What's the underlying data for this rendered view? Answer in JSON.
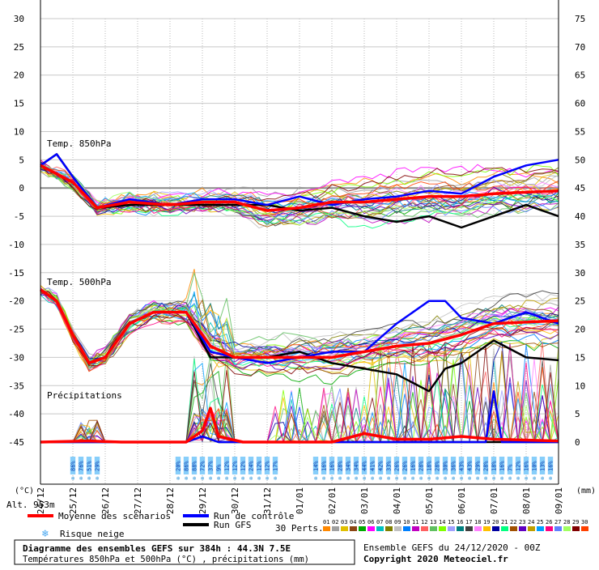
{
  "chart_data": {
    "type": "line",
    "title": "Diagramme des ensembles GEFS sur 384h : 44.3N 7.5E",
    "subtitle": "Températures 850hPa et 500hPa (°C) , précipitations (mm)",
    "left_axis": {
      "min": -45,
      "max": 30,
      "step": 5,
      "label": "(°C)"
    },
    "right_axis": {
      "min": 0,
      "max": 75,
      "step": 5,
      "label": "(mm)"
    },
    "x_labels": [
      "25/12",
      "26/12",
      "27/12",
      "28/12",
      "29/12",
      "30/12",
      "31/12",
      "01/01",
      "02/01",
      "03/01",
      "04/01",
      "05/01",
      "06/01",
      "07/01",
      "08/01",
      "09/01"
    ],
    "x_start_label": "24/12",
    "hours_total": 384,
    "altitude": "Alt. 953m",
    "sections": {
      "t850": "Temp. 850hPa",
      "t500": "Temp. 500hPa",
      "precip": "Précipitations"
    },
    "series": [
      {
        "name": "Moyenne des scénarios",
        "color": "#ff0000",
        "t850": [
          [
            0,
            4
          ],
          [
            24,
            1
          ],
          [
            42,
            -3.5
          ],
          [
            66,
            -2.5
          ],
          [
            96,
            -3
          ],
          [
            120,
            -2.5
          ],
          [
            144,
            -2.5
          ],
          [
            168,
            -4
          ],
          [
            192,
            -3.5
          ],
          [
            216,
            -2.5
          ],
          [
            240,
            -2.5
          ],
          [
            264,
            -2
          ],
          [
            288,
            -1.5
          ],
          [
            312,
            -1.5
          ],
          [
            336,
            -1
          ],
          [
            384,
            -0.5
          ]
        ],
        "t500": [
          [
            0,
            -18
          ],
          [
            12,
            -20
          ],
          [
            24,
            -26
          ],
          [
            36,
            -31
          ],
          [
            48,
            -30
          ],
          [
            66,
            -24
          ],
          [
            84,
            -22
          ],
          [
            108,
            -22
          ],
          [
            126,
            -28
          ],
          [
            144,
            -30
          ],
          [
            168,
            -30
          ],
          [
            192,
            -30
          ],
          [
            216,
            -30
          ],
          [
            240,
            -29
          ],
          [
            264,
            -28
          ],
          [
            288,
            -27.5
          ],
          [
            312,
            -26
          ],
          [
            336,
            -24
          ],
          [
            384,
            -23.5
          ]
        ],
        "precip": [
          [
            0,
            0
          ],
          [
            36,
            0.2
          ],
          [
            60,
            0
          ],
          [
            108,
            0
          ],
          [
            120,
            2
          ],
          [
            126,
            6
          ],
          [
            132,
            1
          ],
          [
            150,
            0
          ],
          [
            168,
            0
          ],
          [
            216,
            0
          ],
          [
            240,
            1.5
          ],
          [
            264,
            0.5
          ],
          [
            288,
            0.5
          ],
          [
            312,
            1
          ],
          [
            336,
            0.5
          ],
          [
            384,
            0.2
          ]
        ]
      },
      {
        "name": "Run de contrôle",
        "color": "#0000ff",
        "t850": [
          [
            0,
            4
          ],
          [
            12,
            6
          ],
          [
            24,
            2
          ],
          [
            42,
            -3.5
          ],
          [
            66,
            -2
          ],
          [
            96,
            -3
          ],
          [
            120,
            -2
          ],
          [
            144,
            -2
          ],
          [
            168,
            -3
          ],
          [
            192,
            -1.5
          ],
          [
            216,
            -3
          ],
          [
            240,
            -2
          ],
          [
            264,
            -1.5
          ],
          [
            288,
            -0.5
          ],
          [
            312,
            -1
          ],
          [
            336,
            2
          ],
          [
            360,
            4
          ],
          [
            384,
            5
          ]
        ],
        "t500": [
          [
            0,
            -18
          ],
          [
            12,
            -20
          ],
          [
            24,
            -26
          ],
          [
            36,
            -31
          ],
          [
            48,
            -30
          ],
          [
            66,
            -24
          ],
          [
            84,
            -22
          ],
          [
            108,
            -22
          ],
          [
            126,
            -29
          ],
          [
            144,
            -30
          ],
          [
            168,
            -31
          ],
          [
            192,
            -30
          ],
          [
            216,
            -29
          ],
          [
            240,
            -29
          ],
          [
            264,
            -24
          ],
          [
            288,
            -20
          ],
          [
            300,
            -20
          ],
          [
            312,
            -23
          ],
          [
            336,
            -24
          ],
          [
            360,
            -22
          ],
          [
            384,
            -24
          ]
        ],
        "precip": [
          [
            0,
            0
          ],
          [
            60,
            0
          ],
          [
            108,
            0
          ],
          [
            120,
            1
          ],
          [
            132,
            0
          ],
          [
            240,
            0
          ],
          [
            288,
            0
          ],
          [
            300,
            0
          ],
          [
            330,
            0
          ],
          [
            336,
            9
          ],
          [
            342,
            0
          ],
          [
            384,
            0
          ]
        ]
      },
      {
        "name": "Run GFS",
        "color": "#000000",
        "t850": [
          [
            0,
            4
          ],
          [
            12,
            6
          ],
          [
            24,
            2
          ],
          [
            42,
            -3.5
          ],
          [
            66,
            -3
          ],
          [
            96,
            -3
          ],
          [
            120,
            -3
          ],
          [
            144,
            -3
          ],
          [
            168,
            -3
          ],
          [
            192,
            -4
          ],
          [
            216,
            -3.5
          ],
          [
            240,
            -5
          ],
          [
            264,
            -6
          ],
          [
            288,
            -5
          ],
          [
            312,
            -7
          ],
          [
            336,
            -5
          ],
          [
            360,
            -3
          ],
          [
            384,
            -5
          ]
        ],
        "t500": [
          [
            0,
            -18
          ],
          [
            12,
            -20
          ],
          [
            24,
            -26
          ],
          [
            36,
            -31
          ],
          [
            48,
            -30
          ],
          [
            66,
            -24
          ],
          [
            84,
            -22
          ],
          [
            108,
            -22
          ],
          [
            126,
            -30
          ],
          [
            144,
            -30
          ],
          [
            168,
            -30
          ],
          [
            192,
            -29
          ],
          [
            216,
            -31
          ],
          [
            240,
            -32
          ],
          [
            264,
            -33
          ],
          [
            288,
            -36
          ],
          [
            300,
            -32
          ],
          [
            312,
            -31
          ],
          [
            336,
            -27
          ],
          [
            360,
            -30
          ],
          [
            384,
            -30.5
          ]
        ],
        "precip": [
          [
            0,
            0
          ],
          [
            60,
            0
          ],
          [
            108,
            0
          ],
          [
            120,
            1
          ],
          [
            132,
            0
          ],
          [
            240,
            0
          ],
          [
            384,
            0
          ]
        ]
      }
    ],
    "snow_risk": {
      "label": "Risque neige",
      "groups": [
        {
          "start_hour": 24,
          "step_hours": 6,
          "values": [
            "86%",
            "76%",
            "51%",
            "29%"
          ]
        },
        {
          "start_hour": 102,
          "step_hours": 6,
          "values": [
            "20%",
            "86%",
            "88%",
            "72%",
            "37%",
            "9%",
            "12%",
            "12%",
            "12%",
            "24%",
            "12%",
            "12%",
            "17%"
          ]
        },
        {
          "start_hour": 204,
          "step_hours": 6,
          "values": [
            "14%",
            "16%",
            "16%",
            "28%",
            "34%",
            "34%",
            "44%",
            "41%",
            "42%",
            "33%",
            "26%",
            "26%",
            "16%",
            "28%",
            "18%",
            "28%",
            "30%",
            "36%",
            "43%",
            "43%",
            "29%",
            "28%",
            "18%",
            "16%",
            "7%",
            "12%",
            "16%",
            "10%",
            "13%",
            "16%"
          ]
        }
      ]
    },
    "perturbations": {
      "label": "30 Perts.",
      "ids": [
        "01",
        "02",
        "03",
        "04",
        "05",
        "06",
        "07",
        "08",
        "09",
        "10",
        "11",
        "12",
        "13",
        "14",
        "15",
        "16",
        "17",
        "18",
        "19",
        "20",
        "21",
        "22",
        "23",
        "24",
        "25",
        "26",
        "27",
        "28",
        "29",
        "30"
      ],
      "colors": [
        "#ff8800",
        "#a0a0a0",
        "#e0c000",
        "#8b4513",
        "#00aa00",
        "#ff00ff",
        "#00c0c0",
        "#808000",
        "#c0c0c0",
        "#0080ff",
        "#c000c0",
        "#ff6060",
        "#60c060",
        "#80ff00",
        "#a0a0ff",
        "#008080",
        "#404040",
        "#ff80ff",
        "#ffc000",
        "#0000a0",
        "#00ff80",
        "#a05000",
        "#6000c0",
        "#c0a000",
        "#00a0ff",
        "#ff0080",
        "#6080ff",
        "#a0ff60",
        "#800000",
        "#ff4000"
      ]
    }
  },
  "footer": {
    "legend_mean": "Moyenne des scénarios",
    "legend_control": "Run de contrôle",
    "legend_gfs": "Run GFS",
    "snow_label": "Risque neige",
    "title_line1": "Diagramme des ensembles GEFS sur 384h : 44.3N 7.5E",
    "title_line2": "Températures 850hPa et 500hPa (°C) , précipitations (mm)",
    "ensemble_info": "Ensemble GEFS du 24/12/2020 - 00Z",
    "copyright": "Copyright 2020 Meteociel.fr"
  },
  "colors": {
    "mean": "#ff0000",
    "control": "#0000ff",
    "gfs": "#000000",
    "grid": "#b0b0b0",
    "snow": "#87cefa"
  }
}
